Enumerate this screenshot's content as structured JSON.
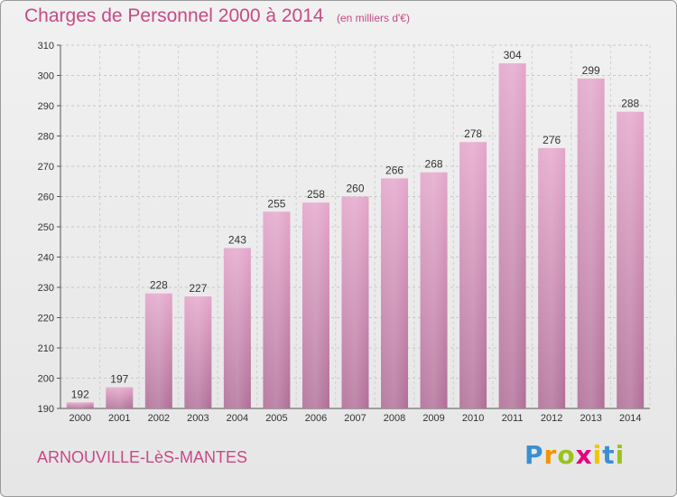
{
  "header": {
    "title": "Charges de Personnel 2000 à 2014",
    "subtitle": "(en milliers d'€)"
  },
  "footer": {
    "city": "ARNOUVILLE-LèS-MANTES"
  },
  "logo": {
    "letters": [
      {
        "char": "P",
        "color": "#3a8fd1"
      },
      {
        "char": "r",
        "color": "#f29400"
      },
      {
        "char": "o",
        "color": "#9ac31c"
      },
      {
        "char": "x",
        "color": "#e5007d"
      },
      {
        "char": "i",
        "color": "#f2c500"
      },
      {
        "char": "t",
        "color": "#3a8fd1"
      },
      {
        "char": "i",
        "color": "#9ac31c"
      }
    ]
  },
  "chart_data": {
    "type": "bar",
    "categories": [
      "2000",
      "2001",
      "2002",
      "2003",
      "2004",
      "2005",
      "2006",
      "2007",
      "2008",
      "2009",
      "2010",
      "2011",
      "2012",
      "2013",
      "2014"
    ],
    "values": [
      192,
      197,
      228,
      227,
      243,
      255,
      258,
      260,
      266,
      268,
      278,
      304,
      276,
      299,
      288
    ],
    "title": "Charges de Personnel 2000 à 2014",
    "ylim": [
      190,
      310
    ],
    "yticks": [
      190,
      200,
      210,
      220,
      230,
      240,
      250,
      260,
      270,
      280,
      290,
      300,
      310
    ],
    "grid": true,
    "bar_color": "#d98cb8"
  }
}
